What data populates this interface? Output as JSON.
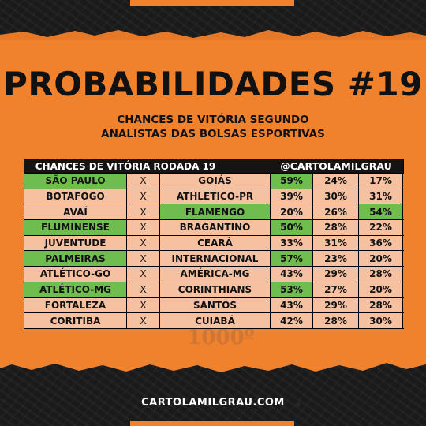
{
  "title": "PROBABILIDADES #19",
  "subtitle_line1": "CHANCES DE VITÓRIA SEGUNDO",
  "subtitle_line2": "ANALISTAS DAS BOLSAS ESPORTIVAS",
  "table": {
    "header_left": "CHANCES DE VITÓRIA RODADA 19",
    "header_right": "@CARTOLAMILGRAU",
    "rows": [
      {
        "home": "SÃO PAULO",
        "x": "X",
        "away": "GOIÁS",
        "p_home": "59%",
        "p_draw": "24%",
        "p_away": "17%",
        "winner": "home"
      },
      {
        "home": "BOTAFOGO",
        "x": "X",
        "away": "ATHLETICO-PR",
        "p_home": "39%",
        "p_draw": "30%",
        "p_away": "31%",
        "winner": "none"
      },
      {
        "home": "AVAÍ",
        "x": "X",
        "away": "FLAMENGO",
        "p_home": "20%",
        "p_draw": "26%",
        "p_away": "54%",
        "winner": "away"
      },
      {
        "home": "FLUMINENSE",
        "x": "X",
        "away": "BRAGANTINO",
        "p_home": "50%",
        "p_draw": "28%",
        "p_away": "22%",
        "winner": "home"
      },
      {
        "home": "JUVENTUDE",
        "x": "X",
        "away": "CEARÁ",
        "p_home": "33%",
        "p_draw": "31%",
        "p_away": "36%",
        "winner": "none"
      },
      {
        "home": "PALMEIRAS",
        "x": "X",
        "away": "INTERNACIONAL",
        "p_home": "57%",
        "p_draw": "23%",
        "p_away": "20%",
        "winner": "home"
      },
      {
        "home": "ATLÉTICO-GO",
        "x": "X",
        "away": "AMÉRICA-MG",
        "p_home": "43%",
        "p_draw": "29%",
        "p_away": "28%",
        "winner": "none"
      },
      {
        "home": "ATLÉTICO-MG",
        "x": "X",
        "away": "CORINTHIANS",
        "p_home": "53%",
        "p_draw": "27%",
        "p_away": "20%",
        "winner": "home"
      },
      {
        "home": "FORTALEZA",
        "x": "X",
        "away": "SANTOS",
        "p_home": "43%",
        "p_draw": "29%",
        "p_away": "28%",
        "winner": "none"
      },
      {
        "home": "CORITIBA",
        "x": "X",
        "away": "CUIABÁ",
        "p_home": "42%",
        "p_draw": "28%",
        "p_away": "30%",
        "winner": "none"
      }
    ]
  },
  "watermark_text": "1000º",
  "footer": "CARTOLAMILGRAU.COM",
  "colors": {
    "orange": "#f0822e",
    "cell": "#f6c1a0",
    "green": "#6fbd4e",
    "dark": "#141414"
  }
}
